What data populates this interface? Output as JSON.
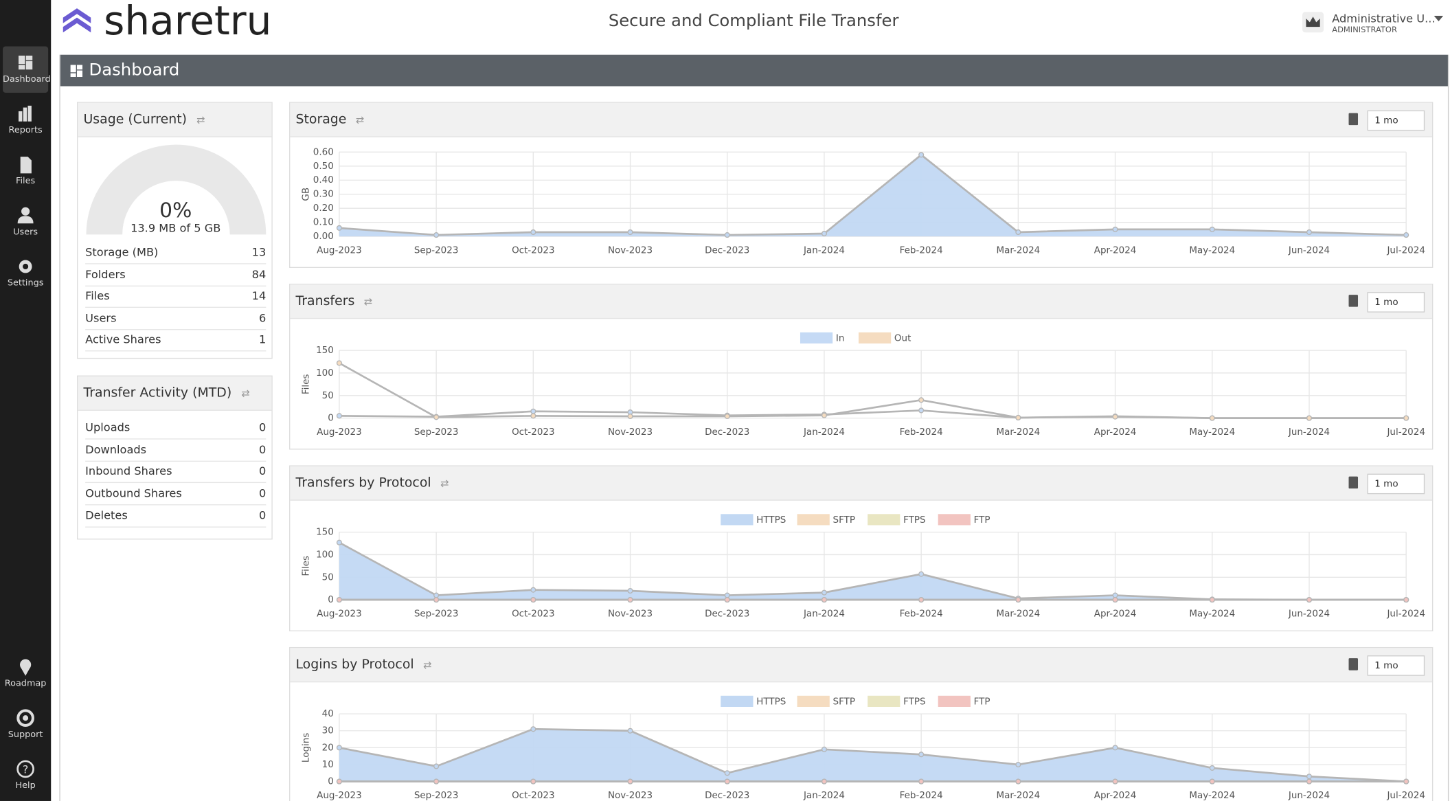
{
  "header": {
    "logo": "sharetru",
    "title": "Secure and Compliant File Transfer",
    "user_name": "Administrative U...",
    "user_role": "ADMINISTRATOR"
  },
  "sidebar": {
    "items": [
      "Dashboard",
      "Reports",
      "Files",
      "Users",
      "Settings"
    ],
    "bottom_items": [
      "Roadmap",
      "Support",
      "Help"
    ]
  },
  "page_title": "Dashboard",
  "usage": {
    "title": "Usage (Current)",
    "gauge_value": "0%",
    "gauge_caption": "13.9 MB of 5 GB",
    "rows": [
      [
        "Storage (MB)",
        13
      ],
      [
        "Folders",
        84
      ],
      [
        "Files",
        14
      ],
      [
        "Users",
        6
      ],
      [
        "Active Shares",
        1
      ]
    ]
  },
  "transfer_activity": {
    "title": "Transfer Activity (MTD)",
    "rows": [
      [
        "Uploads",
        0
      ],
      [
        "Downloads",
        0
      ],
      [
        "Inbound Shares",
        0
      ],
      [
        "Outbound Shares",
        0
      ],
      [
        "Deletes",
        0
      ]
    ]
  },
  "charts": [
    {
      "type": "area",
      "title": "Storage",
      "period": "1 mo",
      "y_label": "GB",
      "legend": false,
      "categories": [
        "Aug-2023",
        "Sep-2023",
        "Oct-2023",
        "Nov-2023",
        "Dec-2023",
        "Jan-2024",
        "Feb-2024",
        "Mar-2024",
        "Apr-2024",
        "May-2024",
        "Jun-2024",
        "Jul-2024"
      ],
      "ylim": [
        0,
        0.6
      ],
      "yticks": [
        {
          "value": 0,
          "label": "0.00"
        },
        {
          "value": 0.1,
          "label": "0.10"
        },
        {
          "value": 0.2,
          "label": "0.20"
        },
        {
          "value": 0.3,
          "label": "0.30"
        },
        {
          "value": 0.4,
          "label": "0.40"
        },
        {
          "value": 0.5,
          "label": "0.50"
        },
        {
          "value": 0.6,
          "label": "0.60"
        }
      ],
      "series": [
        {
          "name": "Storage",
          "color": "#c2d8f3",
          "values": [
            0.06,
            0.01,
            0.03,
            0.03,
            0.01,
            0.02,
            0.58,
            0.03,
            0.05,
            0.05,
            0.03,
            0.01
          ]
        }
      ]
    },
    {
      "type": "line",
      "title": "Transfers",
      "period": "1 mo",
      "y_label": "Files",
      "legend": true,
      "categories": [
        "Aug-2023",
        "Sep-2023",
        "Oct-2023",
        "Nov-2023",
        "Dec-2023",
        "Jan-2024",
        "Feb-2024",
        "Mar-2024",
        "Apr-2024",
        "May-2024",
        "Jun-2024",
        "Jul-2024"
      ],
      "ylim": [
        0,
        150
      ],
      "yticks": [
        0,
        50,
        100,
        150
      ],
      "series": [
        {
          "name": "In",
          "color": "#c5daf5",
          "values": [
            5,
            3,
            15,
            13,
            6,
            8,
            17,
            1,
            4,
            0,
            0,
            0
          ]
        },
        {
          "name": "Out",
          "color": "#f5dcc0",
          "values": [
            122,
            2,
            5,
            4,
            4,
            6,
            40,
            1,
            3,
            0,
            0,
            0
          ]
        }
      ]
    },
    {
      "type": "area",
      "title": "Transfers by Protocol",
      "period": "1 mo",
      "y_label": "Files",
      "legend": true,
      "categories": [
        "Aug-2023",
        "Sep-2023",
        "Oct-2023",
        "Nov-2023",
        "Dec-2023",
        "Jan-2024",
        "Feb-2024",
        "Mar-2024",
        "Apr-2024",
        "May-2024",
        "Jun-2024",
        "Jul-2024"
      ],
      "ylim": [
        0,
        150
      ],
      "yticks": [
        0,
        50,
        100,
        150
      ],
      "series": [
        {
          "name": "HTTPS",
          "color": "#c2d8f3",
          "values": [
            127,
            10,
            22,
            20,
            10,
            16,
            57,
            3,
            10,
            1,
            0,
            0
          ]
        },
        {
          "name": "SFTP",
          "color": "#f5dcc0",
          "values": [
            0,
            0,
            0,
            0,
            0,
            0,
            0,
            0,
            0,
            0,
            0,
            0
          ]
        },
        {
          "name": "FTPS",
          "color": "#e9e6c2",
          "values": [
            0,
            0,
            0,
            0,
            0,
            0,
            0,
            0,
            0,
            0,
            0,
            0
          ]
        },
        {
          "name": "FTP",
          "color": "#f2c4c0",
          "values": [
            0,
            0,
            0,
            0,
            0,
            0,
            0,
            0,
            0,
            0,
            0,
            0
          ]
        }
      ]
    },
    {
      "type": "area",
      "title": "Logins by Protocol",
      "period": "1 mo",
      "y_label": "Logins",
      "legend": true,
      "categories": [
        "Aug-2023",
        "Sep-2023",
        "Oct-2023",
        "Nov-2023",
        "Dec-2023",
        "Jan-2024",
        "Feb-2024",
        "Mar-2024",
        "Apr-2024",
        "May-2024",
        "Jun-2024",
        "Jul-2024"
      ],
      "ylim": [
        0,
        40
      ],
      "yticks": [
        0,
        10,
        20,
        30,
        40
      ],
      "series": [
        {
          "name": "HTTPS",
          "color": "#c2d8f3",
          "values": [
            20,
            9,
            31,
            30,
            5,
            19,
            16,
            10,
            20,
            8,
            3,
            0
          ]
        },
        {
          "name": "SFTP",
          "color": "#f5dcc0",
          "values": [
            0,
            0,
            0,
            0,
            0,
            0,
            0,
            0,
            0,
            0,
            0,
            0
          ]
        },
        {
          "name": "FTPS",
          "color": "#e9e6c2",
          "values": [
            0,
            0,
            0,
            0,
            0,
            0,
            0,
            0,
            0,
            0,
            0,
            0
          ]
        },
        {
          "name": "FTP",
          "color": "#f2c4c0",
          "values": [
            0,
            0,
            0,
            0,
            0,
            0,
            0,
            0,
            0,
            0,
            0,
            0
          ]
        }
      ]
    }
  ]
}
